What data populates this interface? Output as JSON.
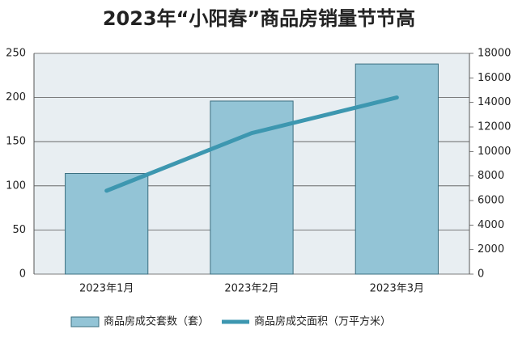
{
  "chart_data": {
    "type": "combo",
    "title": "2023年“小阳春”商品房销量节节高",
    "categories": [
      "2023年1月",
      "2023年2月",
      "2023年3月"
    ],
    "series": [
      {
        "name": "商品房成交套数（套）",
        "type": "bar",
        "color": "#93c4d6",
        "values": [
          114,
          196,
          238
        ]
      },
      {
        "name": "商品房成交面积（万平方米）",
        "type": "line",
        "axis": "y2",
        "color": "#3d97b0",
        "values": [
          6800,
          11500,
          14400
        ]
      }
    ],
    "ylim": [
      0,
      250
    ],
    "yticks": [
      0,
      50,
      100,
      150,
      200,
      250
    ],
    "y2lim": [
      0,
      18000
    ],
    "y2ticks": [
      0,
      2000,
      4000,
      6000,
      8000,
      10000,
      12000,
      14000,
      16000,
      18000
    ],
    "grid": true,
    "legend": "bottom"
  }
}
